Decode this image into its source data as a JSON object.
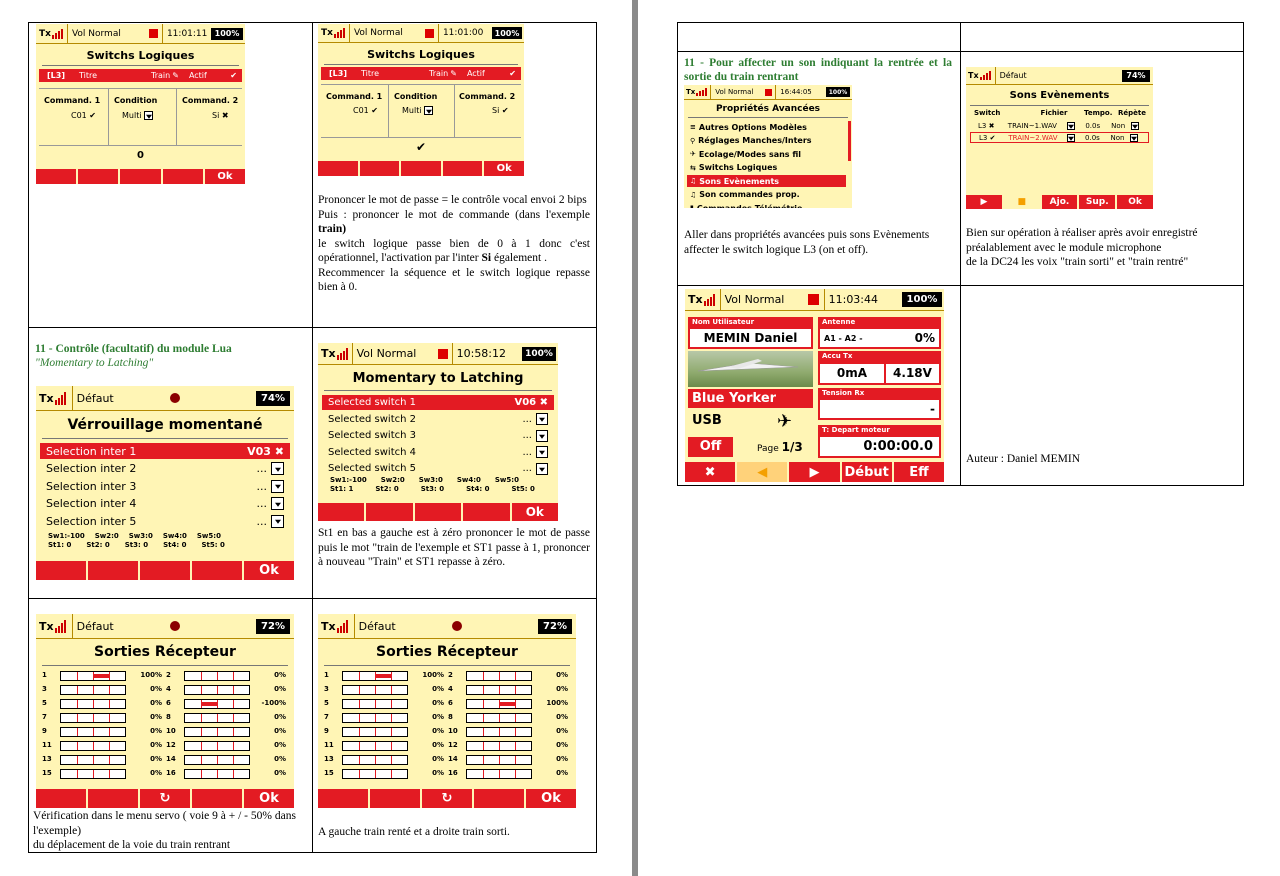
{
  "cell_texts": {
    "mdp": "Prononcer le mot de passe = le contrôle vocal envoi 2 bips",
    "puis": "Puis : prononcer le mot de commande (dans l'exemple",
    "train": "train)",
    "switch_passe": "le switch logique passe bien de 0 à 1 donc c'est opérationnel, l'activation par l'inter",
    "si": "Si",
    "egalement": "également .",
    "recommencer": "Recommencer la séquence et le switch logique repasse bien à 0.",
    "h11a": "11 - Contrôle (facultatif) du module Lua",
    "h11a_sub": "\"Momentary to Latching\"",
    "st1": "St1 en bas a gauche est à zéro prononcer le mot de passe puis le mot \"train de l'exemple et ST1 passe à 1, prononcer à nouveau \"Train\" et ST1 repasse à zéro.",
    "verif": "Vérification dans le menu servo ( voie 9 à + / - 50% dans l'exemple)",
    "deplacement": "du déplacement de la voie du train rentrant",
    "gauche_droite": "A gauche train renté et a droite train sorti.",
    "h11b": "11 - Pour affecter un son indiquant la rentrée et la sortie du train rentrant",
    "aller": "Aller dans propriétés avancées puis sons Evènements",
    "affecter": "affecter le switch logique L3 (on et off).",
    "bien": "Bien sur opération à réaliser après avoir enregistré préalablement avec le module microphone",
    "dc24": "de la DC24 les voix \"train sorti\" et \"train rentré\"",
    "auteur": "Auteur : Daniel MEMIN"
  },
  "s1": {
    "tx": "Tx",
    "name": "Vol Normal",
    "time": "11:01:11",
    "bat": "100%",
    "title": "Switchs Logiques",
    "l3": "[L3]",
    "titre": "Titre",
    "train": "Train",
    "actif": "Actif",
    "cmd1": "Command. 1",
    "cond": "Condition",
    "cmd2": "Command. 2",
    "c01": "C01 ✔",
    "multi": "Multi",
    "si": "Si ✖",
    "value": "0",
    "ok": "Ok"
  },
  "s2": {
    "tx": "Tx",
    "name": "Vol Normal",
    "time": "11:01:00",
    "bat": "100%",
    "title": "Switchs Logiques",
    "l3": "[L3]",
    "titre": "Titre",
    "train": "Train",
    "actif": "Actif",
    "cmd1": "Command. 1",
    "cond": "Condition",
    "cmd2": "Command. 2",
    "c01": "C01 ✔",
    "multi": "Multi",
    "si": "Si ✔",
    "value": "✔",
    "ok": "Ok"
  },
  "s3": {
    "tx": "Tx",
    "name": "Défaut",
    "bat": "74%",
    "title": "Vérrouillage momentané",
    "rows": [
      {
        "label": "Selection inter 1",
        "val": "V03 ✖"
      },
      {
        "label": "Selection inter 2",
        "val": "..."
      },
      {
        "label": "Selection inter 3",
        "val": "..."
      },
      {
        "label": "Selection inter 4",
        "val": "..."
      },
      {
        "label": "Selection inter 5",
        "val": "..."
      }
    ],
    "sw": [
      "Sw1:-100",
      "Sw2:0",
      "Sw3:0",
      "Sw4:0",
      "Sw5:0"
    ],
    "st": [
      "St1: 0",
      "St2: 0",
      "St3: 0",
      "St4: 0",
      "St5: 0"
    ],
    "ok": "Ok"
  },
  "s4": {
    "tx": "Tx",
    "name": "Vol Normal",
    "time": "10:58:12",
    "bat": "100%",
    "title": "Momentary to Latching",
    "rows": [
      {
        "label": "Selected switch 1",
        "val": "V06 ✖"
      },
      {
        "label": "Selected switch 2",
        "val": "..."
      },
      {
        "label": "Selected switch 3",
        "val": "..."
      },
      {
        "label": "Selected switch 4",
        "val": "..."
      },
      {
        "label": "Selected switch 5",
        "val": "..."
      }
    ],
    "sw": [
      "Sw1:-100",
      "Sw2:0",
      "Sw3:0",
      "Sw4:0",
      "Sw5:0"
    ],
    "st": [
      "St1: 1",
      "St2: 0",
      "St3: 0",
      "St4: 0",
      "St5: 0"
    ],
    "ok": "Ok"
  },
  "s5": {
    "tx": "Tx",
    "name": "Défaut",
    "bat": "72%",
    "title": "Sorties Récepteur",
    "ok": "Ok",
    "refresh": "↻",
    "channels": [
      {
        "n": "1",
        "v": 100,
        "t": "100%"
      },
      {
        "n": "2",
        "v": 0,
        "t": "0%"
      },
      {
        "n": "3",
        "v": 0,
        "t": "0%"
      },
      {
        "n": "4",
        "v": 0,
        "t": "0%"
      },
      {
        "n": "5",
        "v": 0,
        "t": "0%"
      },
      {
        "n": "6",
        "v": -100,
        "t": "-100%"
      },
      {
        "n": "7",
        "v": 0,
        "t": "0%"
      },
      {
        "n": "8",
        "v": 0,
        "t": "0%"
      },
      {
        "n": "9",
        "v": 0,
        "t": "0%"
      },
      {
        "n": "10",
        "v": 0,
        "t": "0%"
      },
      {
        "n": "11",
        "v": 0,
        "t": "0%"
      },
      {
        "n": "12",
        "v": 0,
        "t": "0%"
      },
      {
        "n": "13",
        "v": 0,
        "t": "0%"
      },
      {
        "n": "14",
        "v": 0,
        "t": "0%"
      },
      {
        "n": "15",
        "v": 0,
        "t": "0%"
      },
      {
        "n": "16",
        "v": 0,
        "t": "0%"
      }
    ]
  },
  "s6": {
    "tx": "Tx",
    "name": "Défaut",
    "bat": "72%",
    "title": "Sorties Récepteur",
    "ok": "Ok",
    "refresh": "↻",
    "channels": [
      {
        "n": "1",
        "v": 100,
        "t": "100%"
      },
      {
        "n": "2",
        "v": 0,
        "t": "0%"
      },
      {
        "n": "3",
        "v": 0,
        "t": "0%"
      },
      {
        "n": "4",
        "v": 0,
        "t": "0%"
      },
      {
        "n": "5",
        "v": 0,
        "t": "0%"
      },
      {
        "n": "6",
        "v": 100,
        "t": "100%"
      },
      {
        "n": "7",
        "v": 0,
        "t": "0%"
      },
      {
        "n": "8",
        "v": 0,
        "t": "0%"
      },
      {
        "n": "9",
        "v": 0,
        "t": "0%"
      },
      {
        "n": "10",
        "v": 0,
        "t": "0%"
      },
      {
        "n": "11",
        "v": 0,
        "t": "0%"
      },
      {
        "n": "12",
        "v": 0,
        "t": "0%"
      },
      {
        "n": "13",
        "v": 0,
        "t": "0%"
      },
      {
        "n": "14",
        "v": 0,
        "t": "0%"
      },
      {
        "n": "15",
        "v": 0,
        "t": "0%"
      },
      {
        "n": "16",
        "v": 0,
        "t": "0%"
      }
    ]
  },
  "s7": {
    "tx": "Tx",
    "name": "Vol Normal",
    "time": "16:44:05",
    "bat": "100%",
    "title": "Propriétés Avancées",
    "items": [
      "Autres Options Modèles",
      "Réglages Manches/Inters",
      "Ecolage/Modes sans fil",
      "Switchs Logiques",
      "Sons Evènements",
      "Son commandes prop.",
      "Commandes Télémétrie"
    ]
  },
  "s8": {
    "tx": "Tx",
    "name": "Défaut",
    "bat": "74%",
    "title": "Sons Evènements",
    "headers": [
      "Switch",
      "Fichier",
      "Tempo.",
      "Répète"
    ],
    "rows": [
      {
        "sw": "L3 ✖",
        "file": "TRAIN~1.WAV",
        "tempo": "0.0s",
        "rep": "Non"
      },
      {
        "sw": "L3 ✔",
        "file": "TRAIN~2.WAV",
        "tempo": "0.0s",
        "rep": "Non"
      }
    ],
    "buttons": [
      "▶",
      "■",
      "Ajo.",
      "Sup.",
      "Ok"
    ]
  },
  "s9": {
    "tx": "Tx",
    "name": "Vol Normal",
    "time": "11:03:44",
    "bat": "100%",
    "user_label": "Nom Utilisateur",
    "user": "MEMIN Daniel",
    "ant_label": "Antenne",
    "ant": "A1  -   A2  -",
    "ant_pct": "0%",
    "accu_label": "Accu Tx",
    "accu_ma": "0mA",
    "accu_v": "4.18V",
    "model": "Blue Yorker",
    "tension_label": "Tension Rx",
    "tension": "-",
    "usb": "USB",
    "depart_label": "T: Depart moteur",
    "off": "Off",
    "page": "Page",
    "page_num": "1/3",
    "timer": "0:00:00.0",
    "buttons": [
      "✖",
      "◀",
      "▶",
      "Début",
      "Eff"
    ]
  }
}
